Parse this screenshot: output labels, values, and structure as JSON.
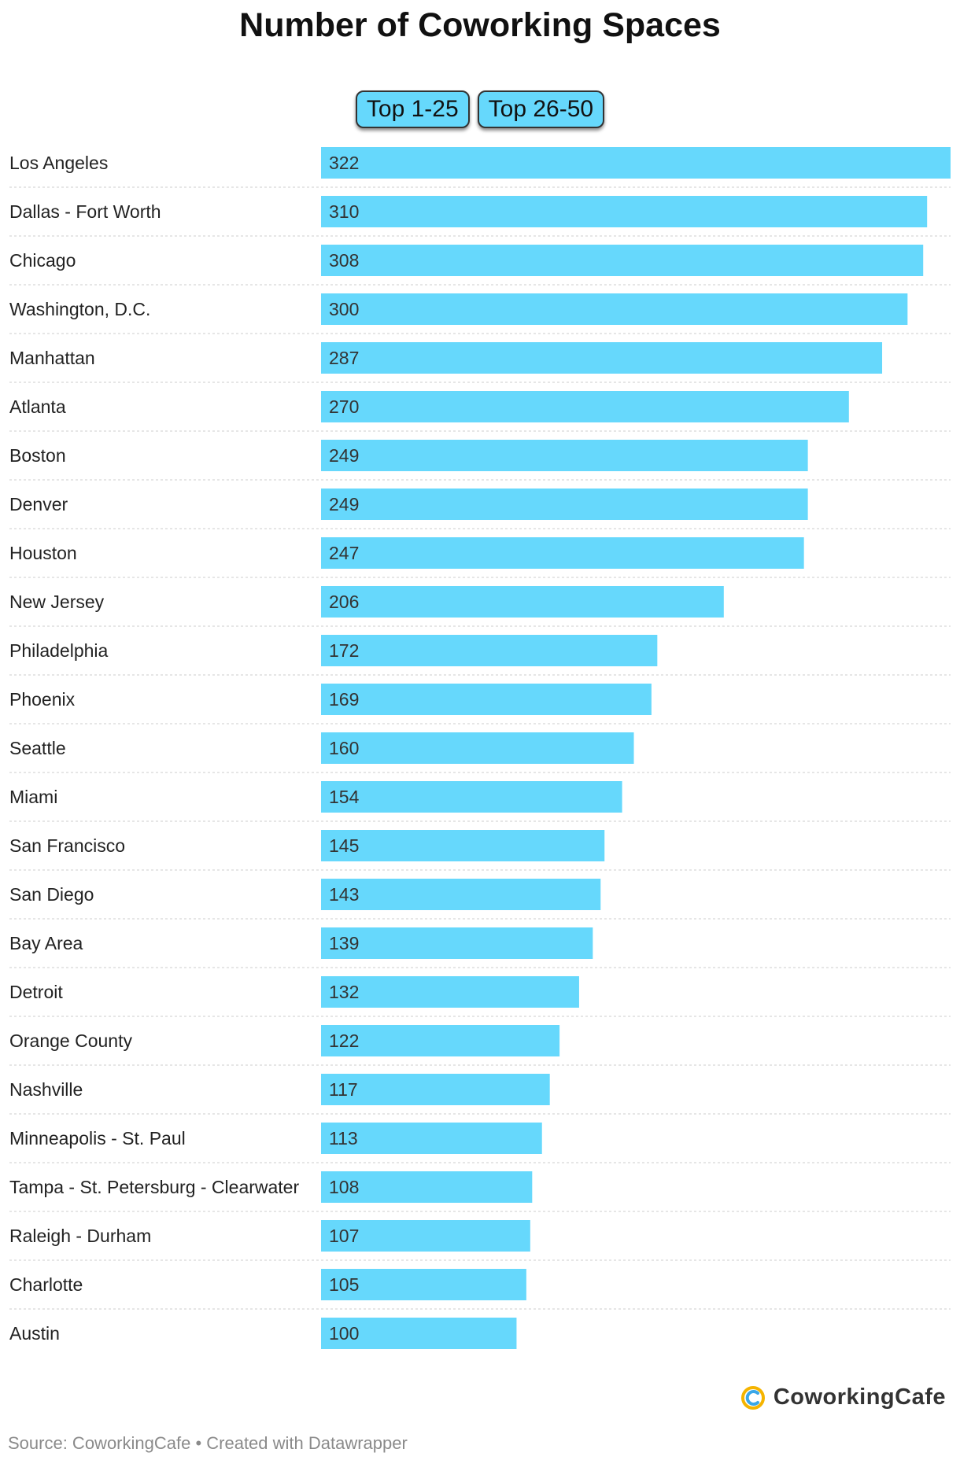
{
  "title": "Number of Coworking Spaces",
  "toggles": [
    "Top 1-25",
    "Top 26-50"
  ],
  "colors": {
    "bar": "#66d8fc",
    "separator": "#cccccc",
    "label": "#222222",
    "value": "#333333"
  },
  "chart_data": {
    "type": "bar",
    "orientation": "horizontal",
    "title": "Number of Coworking Spaces",
    "categories": [
      "Los Angeles",
      "Dallas - Fort Worth",
      "Chicago",
      "Washington, D.C.",
      "Manhattan",
      "Atlanta",
      "Boston",
      "Denver",
      "Houston",
      "New Jersey",
      "Philadelphia",
      "Phoenix",
      "Seattle",
      "Miami",
      "San Francisco",
      "San Diego",
      "Bay Area",
      "Detroit",
      "Orange County",
      "Nashville",
      "Minneapolis - St. Paul",
      "Tampa - St. Petersburg - Clearwater",
      "Raleigh - Durham",
      "Charlotte",
      "Austin"
    ],
    "values": [
      322,
      310,
      308,
      300,
      287,
      270,
      249,
      249,
      247,
      206,
      172,
      169,
      160,
      154,
      145,
      143,
      139,
      132,
      122,
      117,
      113,
      108,
      107,
      105,
      100
    ],
    "xlim": [
      0,
      322
    ]
  },
  "logo": {
    "text": "CoworkingCafe",
    "icon": "coworkingcafe-logo-icon"
  },
  "footer": {
    "source": "Source: CoworkingCafe • Created with Datawrapper"
  }
}
